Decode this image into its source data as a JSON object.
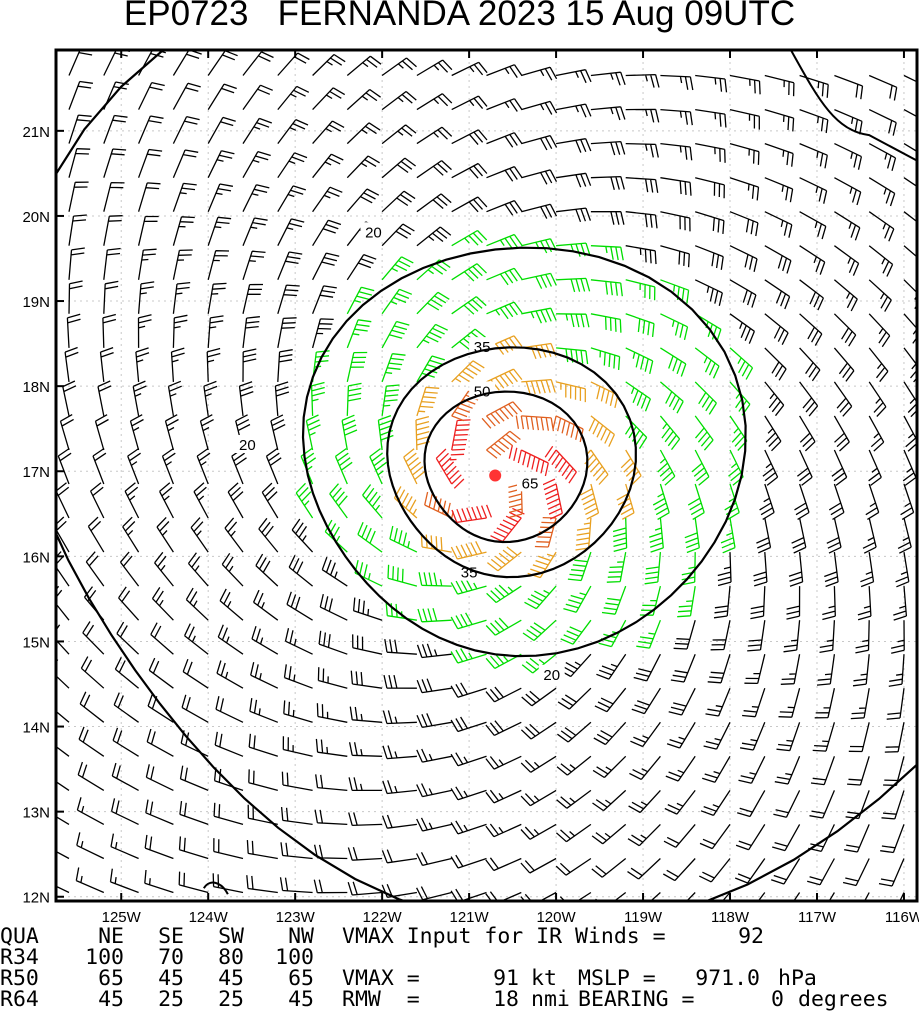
{
  "title": "EP0723   FERNANDA 2023 15 Aug 09UTC",
  "chart_data": {
    "type": "wind_barb_map",
    "storm_id": "EP0723",
    "storm_name": "FERNANDA",
    "year": "2023",
    "date": "15 Aug",
    "time": "09UTC",
    "xlim": [
      -125.75,
      -115.85
    ],
    "ylim": [
      11.95,
      21.95
    ],
    "x_ticks": [
      {
        "value": -125,
        "label": "125W"
      },
      {
        "value": -124,
        "label": "124W"
      },
      {
        "value": -123,
        "label": "123W"
      },
      {
        "value": -122,
        "label": "122W"
      },
      {
        "value": -121,
        "label": "121W"
      },
      {
        "value": -120,
        "label": "120W"
      },
      {
        "value": -119,
        "label": "119W"
      },
      {
        "value": -118,
        "label": "118W"
      },
      {
        "value": -117,
        "label": "117W"
      },
      {
        "value": -116,
        "label": "116W"
      }
    ],
    "y_ticks": [
      {
        "value": 12,
        "label": "12N"
      },
      {
        "value": 13,
        "label": "13N"
      },
      {
        "value": 14,
        "label": "14N"
      },
      {
        "value": 15,
        "label": "15N"
      },
      {
        "value": 16,
        "label": "16N"
      },
      {
        "value": 17,
        "label": "17N"
      },
      {
        "value": 18,
        "label": "18N"
      },
      {
        "value": 19,
        "label": "19N"
      },
      {
        "value": 20,
        "label": "20N"
      },
      {
        "value": 21,
        "label": "21N"
      }
    ],
    "center": {
      "lon": -120.7,
      "lat": 16.95
    },
    "grid": true,
    "contours": [
      {
        "value": 20,
        "label": "20",
        "color": "#000000",
        "label_positions": [
          [
            -122.1,
            19.82
          ],
          [
            -123.55,
            17.32
          ],
          [
            -120.05,
            14.62
          ]
        ]
      },
      {
        "value": 35,
        "label": "35",
        "color": "#000000",
        "label_positions": [
          [
            -120.85,
            18.47
          ],
          [
            -121.0,
            15.82
          ]
        ]
      },
      {
        "value": 50,
        "label": "50",
        "color": "#000000",
        "label_positions": [
          [
            -120.85,
            17.95
          ]
        ]
      },
      {
        "value": 65,
        "label": "65",
        "color": "#000000",
        "label_positions": [
          [
            -120.3,
            16.87
          ]
        ]
      }
    ],
    "barb_colors": {
      "below_34": "#000000",
      "34_to_50": "#00dd00",
      "50_to_64": "#e8a020",
      "64_to_80": "#e06020",
      "80_plus": "#ee2020",
      "center_dot": "#ff3333"
    },
    "radii_table": {
      "headers": [
        "QUA",
        "NE",
        "SE",
        "SW",
        "NW"
      ],
      "rows": [
        {
          "label": "R34",
          "values": [
            "100",
            "70",
            "80",
            "100"
          ]
        },
        {
          "label": "R50",
          "values": [
            "65",
            "45",
            "45",
            "65"
          ]
        },
        {
          "label": "R64",
          "values": [
            "45",
            "25",
            "25",
            "45"
          ]
        }
      ]
    },
    "vmax_input_label": "VMAX Input for IR Winds =",
    "vmax_input": "92",
    "vmax_label": "VMAX =",
    "vmax": "91",
    "vmax_unit": "kt",
    "mslp_label": "MSLP =",
    "mslp": "971.0",
    "mslp_unit": "hPa",
    "rmw_label": "RMW  =",
    "rmw": "18",
    "rmw_unit": "nmi",
    "bearing_label": "BEARING =",
    "bearing": "0",
    "bearing_unit": "degrees"
  }
}
